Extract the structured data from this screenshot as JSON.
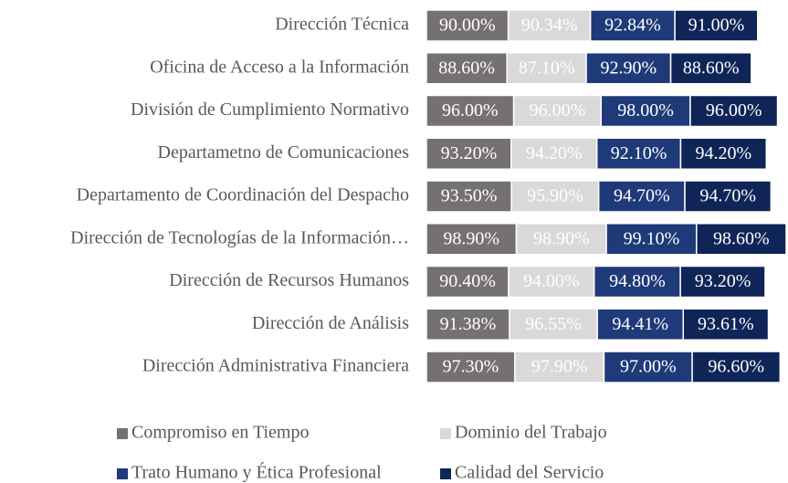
{
  "chart_data": {
    "type": "stacked-bar-horizontal",
    "categories": [
      "Dirección Técnica",
      "Oficina de Acceso a la Información",
      "División de Cumplimiento Normativo",
      "Departametno de Comunicaciones",
      "Departamento de Coordinación del Despacho",
      "Dirección de Tecnologías de la Información…",
      "Dirección de Recursos Humanos",
      "Dirección de Análisis",
      "Dirección Administrativa Financiera"
    ],
    "series": [
      {
        "name": "Compromiso en Tiempo",
        "color": "#767171",
        "values": [
          90.0,
          88.6,
          96.0,
          93.2,
          93.5,
          98.9,
          90.4,
          91.38,
          97.3
        ],
        "value_labels": [
          "90.00%",
          "88.60%",
          "96.00%",
          "93.20%",
          "93.50%",
          "98.90%",
          "90.40%",
          "91.38%",
          "97.30%"
        ]
      },
      {
        "name": "Dominio del Trabajo",
        "color": "#d9d9d9",
        "values": [
          90.34,
          87.1,
          96.0,
          94.2,
          95.9,
          98.9,
          94.0,
          96.55,
          97.9
        ],
        "value_labels": [
          "90.34%",
          "87.10%",
          "96.00%",
          "94.20%",
          "95.90%",
          "98.90%",
          "94.00%",
          "96.55%",
          "97.90%"
        ]
      },
      {
        "name": "Trato Humano y Ética Profesional",
        "color": "#1f3a78",
        "values": [
          92.84,
          92.9,
          98.0,
          92.1,
          94.7,
          99.1,
          94.8,
          94.41,
          97.0
        ],
        "value_labels": [
          "92.84%",
          "92.90%",
          "98.00%",
          "92.10%",
          "94.70%",
          "99.10%",
          "94.80%",
          "94.41%",
          "97.00%"
        ]
      },
      {
        "name": "Calidad del Servicio",
        "color": "#0f2457",
        "values": [
          91.0,
          88.6,
          96.0,
          94.2,
          94.7,
          98.6,
          93.2,
          93.61,
          96.6
        ],
        "value_labels": [
          "91.00%",
          "88.60%",
          "96.00%",
          "94.20%",
          "94.70%",
          "98.60%",
          "93.20%",
          "93.61%",
          "96.60%"
        ]
      }
    ]
  }
}
